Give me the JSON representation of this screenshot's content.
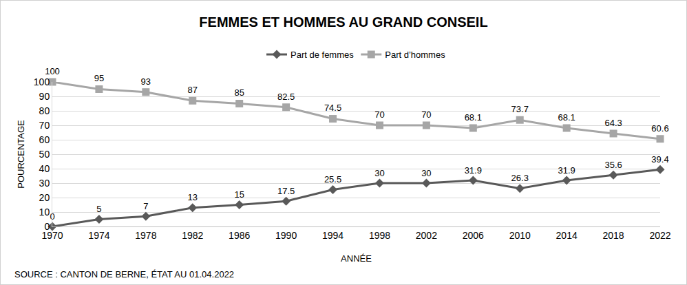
{
  "chart_data": {
    "type": "line",
    "title": "FEMMES ET HOMMES AU GRAND CONSEIL",
    "x_label": "ANNÉE",
    "y_label": "POURCENTAGE",
    "annotations": [
      "SOURCE : CANTON DE BERNE, ÉTAT AU 01.04.2022"
    ],
    "x": [
      1970,
      1974,
      1978,
      1982,
      1986,
      1990,
      1994,
      1998,
      2002,
      2006,
      2010,
      2014,
      2018,
      2022
    ],
    "series": [
      {
        "name": "Part de femmes",
        "color": "#595959",
        "marker": "diamond",
        "line_style": "solid",
        "values": [
          0,
          5,
          7,
          13,
          15,
          17.5,
          25.5,
          30,
          30,
          31.9,
          26.3,
          31.9,
          35.6,
          39.4
        ]
      },
      {
        "name": "Part d’hommes",
        "color": "#a6a6a6",
        "marker": "square",
        "line_style": "solid",
        "values": [
          100,
          95,
          93,
          87,
          85,
          82.5,
          74.5,
          70,
          70,
          68.1,
          73.7,
          68.1,
          64.3,
          60.6
        ]
      }
    ],
    "xlim": [
      1970,
      2022
    ],
    "xticks": [
      1970,
      1974,
      1978,
      1982,
      1986,
      1990,
      1994,
      1998,
      2002,
      2006,
      2010,
      2014,
      2018,
      2022
    ],
    "ylim": [
      0,
      100
    ],
    "yticks": [
      0,
      10,
      20,
      30,
      40,
      50,
      60,
      70,
      80,
      90,
      100
    ],
    "grid": true,
    "legend": "top",
    "data_labels": true
  }
}
